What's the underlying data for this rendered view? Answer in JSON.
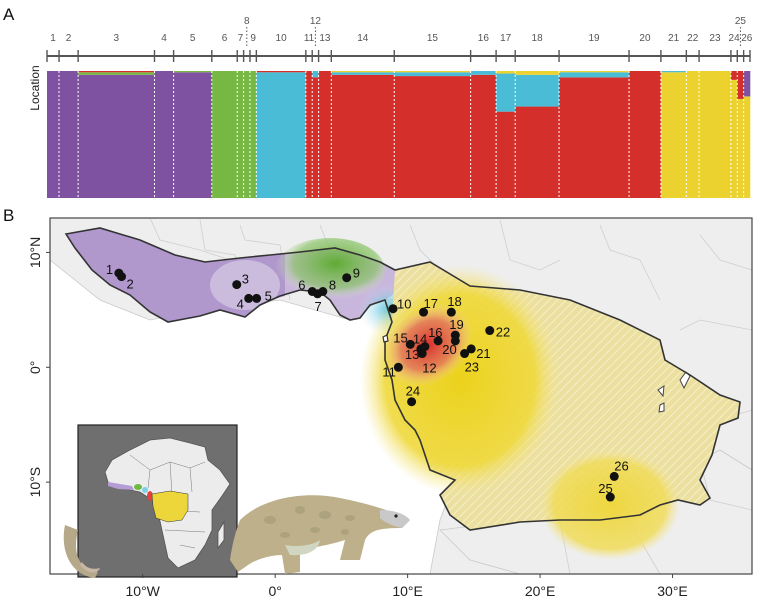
{
  "panels": {
    "a_label": "A",
    "b_label": "B"
  },
  "colors": {
    "purple": "#7e52a0",
    "green": "#76b843",
    "cyan": "#4bbcd6",
    "red": "#d42f2a",
    "yellow": "#ecd22e",
    "land": "#eeeeee",
    "inset_bg": "#6f6f6f"
  },
  "chart_data": [
    {
      "type": "bar",
      "subtype": "stacked-admixture",
      "title": "",
      "ylabel": "Location",
      "legend": "none",
      "clusters": [
        "purple",
        "green",
        "cyan",
        "red",
        "yellow"
      ],
      "locations": [
        {
          "label": "1",
          "share": 0.017,
          "composition": {
            "purple": 1.0
          }
        },
        {
          "label": "2",
          "share": 0.027,
          "composition": {
            "purple": 1.0
          }
        },
        {
          "label": "3",
          "share": 0.108,
          "composition": {
            "purple": 0.97,
            "green": 0.02,
            "red": 0.01
          }
        },
        {
          "label": "4",
          "share": 0.027,
          "composition": {
            "purple": 1.0
          }
        },
        {
          "label": "5",
          "share": 0.054,
          "composition": {
            "purple": 0.99,
            "green": 0.01
          }
        },
        {
          "label": "6",
          "share": 0.036,
          "composition": {
            "green": 1.0
          }
        },
        {
          "label": "7",
          "share": 0.009,
          "composition": {
            "green": 1.0
          }
        },
        {
          "label": "8",
          "share": 0.009,
          "composition": {
            "green": 1.0
          }
        },
        {
          "label": "9",
          "share": 0.009,
          "composition": {
            "green": 1.0
          }
        },
        {
          "label": "10",
          "share": 0.07,
          "composition": {
            "cyan": 0.99,
            "red": 0.01
          }
        },
        {
          "label": "11",
          "share": 0.009,
          "composition": {
            "red": 1.0
          }
        },
        {
          "label": "12",
          "share": 0.009,
          "composition": {
            "red": 0.95,
            "cyan": 0.05
          }
        },
        {
          "label": "13",
          "share": 0.018,
          "composition": {
            "red": 1.0
          }
        },
        {
          "label": "14",
          "share": 0.089,
          "composition": {
            "red": 0.97,
            "cyan": 0.02,
            "yellow": 0.01
          }
        },
        {
          "label": "15",
          "share": 0.108,
          "composition": {
            "red": 0.96,
            "cyan": 0.03,
            "yellow": 0.01
          }
        },
        {
          "label": "16",
          "share": 0.036,
          "composition": {
            "red": 0.97,
            "cyan": 0.03
          }
        },
        {
          "label": "17",
          "share": 0.027,
          "composition": {
            "red": 0.68,
            "cyan": 0.3,
            "yellow": 0.02
          }
        },
        {
          "label": "18",
          "share": 0.062,
          "composition": {
            "red": 0.72,
            "cyan": 0.25,
            "yellow": 0.03
          }
        },
        {
          "label": "19",
          "share": 0.099,
          "composition": {
            "red": 0.95,
            "cyan": 0.04,
            "yellow": 0.01
          }
        },
        {
          "label": "20",
          "share": 0.045,
          "composition": {
            "red": 1.0
          }
        },
        {
          "label": "21",
          "share": 0.036,
          "composition": {
            "yellow": 0.99,
            "cyan": 0.01
          }
        },
        {
          "label": "22",
          "share": 0.018,
          "composition": {
            "yellow": 1.0
          }
        },
        {
          "label": "23",
          "share": 0.045,
          "composition": {
            "yellow": 1.0
          }
        },
        {
          "label": "24",
          "share": 0.009,
          "composition": {
            "yellow": 0.93,
            "red": 0.07
          }
        },
        {
          "label": "25",
          "share": 0.009,
          "composition": {
            "yellow": 0.78,
            "red": 0.22
          }
        },
        {
          "label": "26",
          "share": 0.009,
          "composition": {
            "yellow": 0.8,
            "purple": 0.2
          }
        }
      ]
    },
    {
      "type": "scatter",
      "subtype": "map",
      "title": "",
      "xlabel": "",
      "ylabel": "",
      "x_ticks": [
        "10°W",
        "0°",
        "10°E",
        "20°E",
        "30°E"
      ],
      "x_tick_values": [
        -10,
        0,
        10,
        20,
        30
      ],
      "y_ticks": [
        "10°N",
        "0°",
        "10°S"
      ],
      "y_tick_values": [
        10,
        0,
        -10
      ],
      "xlim": [
        -17,
        36
      ],
      "ylim": [
        -18,
        13
      ],
      "sample_sites": [
        {
          "label": "1",
          "lon": -11.8,
          "lat": 8.2,
          "cluster": "purple"
        },
        {
          "label": "2",
          "lon": -11.6,
          "lat": 7.9,
          "cluster": "purple"
        },
        {
          "label": "3",
          "lon": -2.9,
          "lat": 7.2,
          "cluster": "purple"
        },
        {
          "label": "4",
          "lon": -2.0,
          "lat": 6.0,
          "cluster": "purple"
        },
        {
          "label": "5",
          "lon": -1.4,
          "lat": 6.0,
          "cluster": "purple"
        },
        {
          "label": "6",
          "lon": 2.8,
          "lat": 6.6,
          "cluster": "green"
        },
        {
          "label": "7",
          "lon": 3.2,
          "lat": 6.4,
          "cluster": "green"
        },
        {
          "label": "8",
          "lon": 3.6,
          "lat": 6.6,
          "cluster": "green"
        },
        {
          "label": "9",
          "lon": 5.4,
          "lat": 7.8,
          "cluster": "green"
        },
        {
          "label": "10",
          "lon": 8.9,
          "lat": 5.1,
          "cluster": "cyan"
        },
        {
          "label": "11",
          "lon": 9.3,
          "lat": 0.0,
          "cluster": "red"
        },
        {
          "label": "12",
          "lon": 11.1,
          "lat": 1.2,
          "cluster": "red"
        },
        {
          "label": "13",
          "lon": 11.0,
          "lat": 1.6,
          "cluster": "red"
        },
        {
          "label": "14",
          "lon": 11.3,
          "lat": 1.8,
          "cluster": "red"
        },
        {
          "label": "15",
          "lon": 10.2,
          "lat": 2.0,
          "cluster": "red"
        },
        {
          "label": "16",
          "lon": 12.3,
          "lat": 2.3,
          "cluster": "red"
        },
        {
          "label": "17",
          "lon": 11.2,
          "lat": 4.8,
          "cluster": "red"
        },
        {
          "label": "18",
          "lon": 13.3,
          "lat": 4.8,
          "cluster": "red"
        },
        {
          "label": "19",
          "lon": 13.6,
          "lat": 2.8,
          "cluster": "red"
        },
        {
          "label": "20",
          "lon": 13.6,
          "lat": 2.3,
          "cluster": "red"
        },
        {
          "label": "21",
          "lon": 14.8,
          "lat": 1.6,
          "cluster": "yellow"
        },
        {
          "label": "22",
          "lon": 16.2,
          "lat": 3.2,
          "cluster": "yellow"
        },
        {
          "label": "23",
          "lon": 14.3,
          "lat": 1.2,
          "cluster": "yellow"
        },
        {
          "label": "24",
          "lon": 10.3,
          "lat": -3.0,
          "cluster": "yellow"
        },
        {
          "label": "25",
          "lon": 25.3,
          "lat": -11.3,
          "cluster": "yellow"
        },
        {
          "label": "26",
          "lon": 25.6,
          "lat": -9.5,
          "cluster": "yellow"
        }
      ]
    }
  ],
  "inset": {
    "name": "Africa overview map"
  },
  "illustration": {
    "name": "White-bellied pangolin"
  }
}
